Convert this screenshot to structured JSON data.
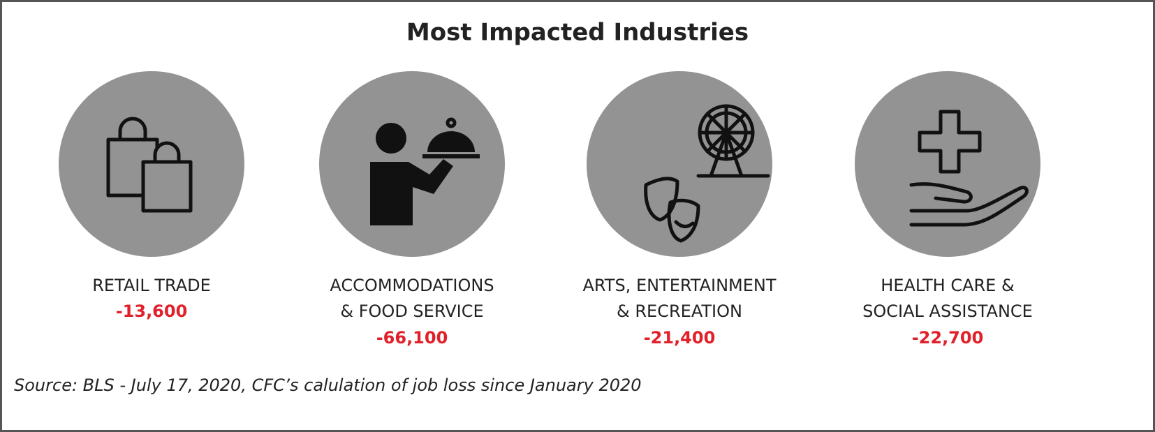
{
  "title": "Most Impacted Industries",
  "industries": [
    {
      "label": [
        "RETAIL TRADE"
      ],
      "value": "-13,600"
    },
    {
      "label": [
        "ACCOMMODATIONS",
        "& FOOD SERVICE"
      ],
      "value": "-66,100"
    },
    {
      "label": [
        "ARTS, ENTERTAINMENT",
        "& RECREATION"
      ],
      "value": "-21,400"
    },
    {
      "label": [
        "HEALTH CARE &",
        "SOCIAL ASSISTANCE"
      ],
      "value": "-22,700"
    }
  ],
  "source": "Source: BLS - July 17, 2020, CFC’s calulation of job loss since January 2020"
}
